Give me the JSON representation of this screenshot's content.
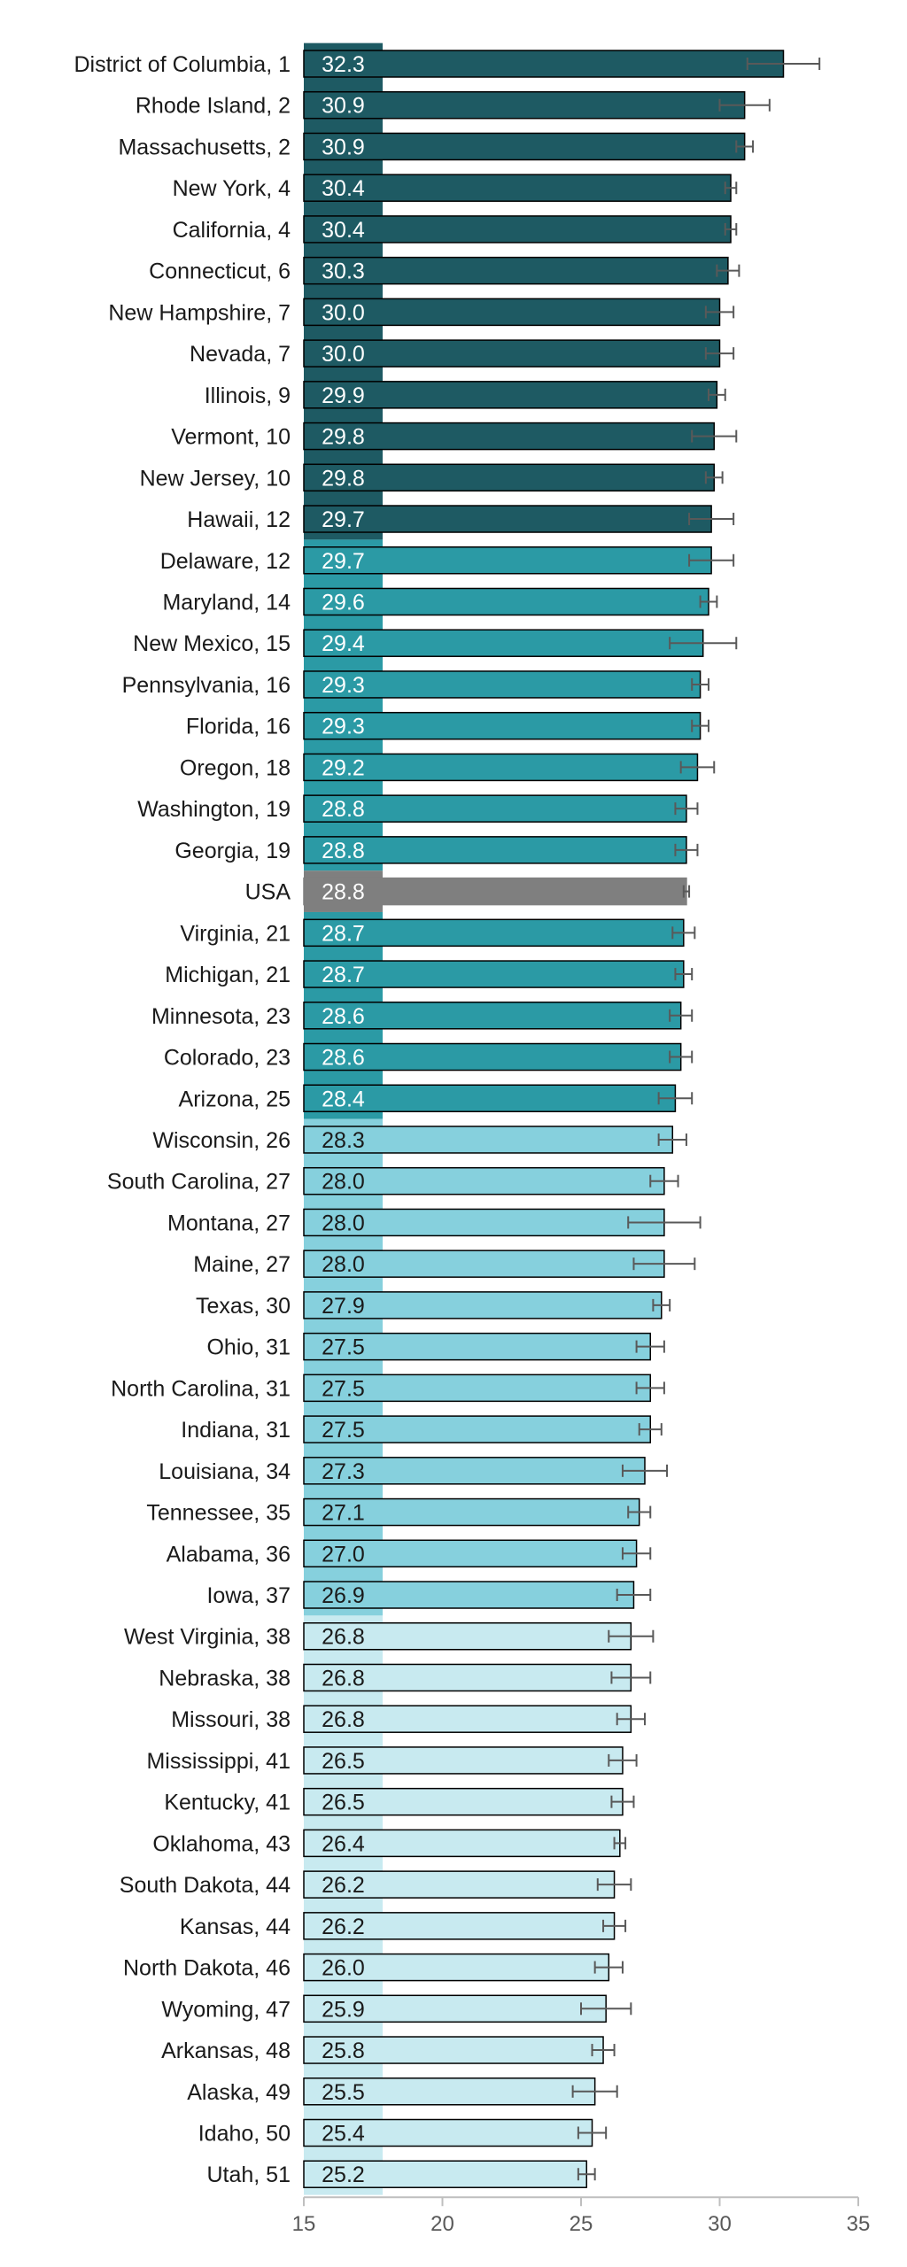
{
  "colors": {
    "tier1": "#1e5a63",
    "tier2": "#2b9aa5",
    "tier3": "#86d0dd",
    "tier4": "#c8eaf0",
    "usa": "#7f7f7f",
    "bar_outline": "#000000",
    "error_bar": "#595959",
    "axis": "#bfbfbf",
    "label_dark_text": "#ffffff",
    "label_light_text": "#1a1a1a"
  },
  "chart_data": {
    "type": "bar",
    "orientation": "horizontal",
    "title": "",
    "xlabel": "",
    "ylabel": "",
    "xlim": [
      15,
      35
    ],
    "xticks": [
      15,
      20,
      25,
      30,
      35
    ],
    "grid": false,
    "legend": "none",
    "categories": [
      "District of Columbia, 1",
      "Rhode Island, 2",
      "Massachusetts, 2",
      "New York, 4",
      "California, 4",
      "Connecticut, 6",
      "New Hampshire, 7",
      "Nevada, 7",
      "Illinois, 9",
      "Vermont, 10",
      "New Jersey, 10",
      "Hawaii, 12",
      "Delaware, 12",
      "Maryland, 14",
      "New Mexico, 15",
      "Pennsylvania, 16",
      "Florida, 16",
      "Oregon, 18",
      "Washington, 19",
      "Georgia, 19",
      "USA",
      "Virginia, 21",
      "Michigan, 21",
      "Minnesota, 23",
      "Colorado, 23",
      "Arizona, 25",
      "Wisconsin, 26",
      "South Carolina, 27",
      "Montana, 27",
      "Maine, 27",
      "Texas, 30",
      "Ohio, 31",
      "North Carolina, 31",
      "Indiana, 31",
      "Louisiana, 34",
      "Tennessee, 35",
      "Alabama, 36",
      "Iowa, 37",
      "West Virginia, 38",
      "Nebraska, 38",
      "Missouri, 38",
      "Mississippi, 41",
      "Kentucky, 41",
      "Oklahoma, 43",
      "South Dakota, 44",
      "Kansas, 44",
      "North Dakota, 46",
      "Wyoming, 47",
      "Arkansas, 48",
      "Alaska, 49",
      "Idaho, 50",
      "Utah, 51"
    ],
    "values": [
      32.3,
      30.9,
      30.9,
      30.4,
      30.4,
      30.3,
      30.0,
      30.0,
      29.9,
      29.8,
      29.8,
      29.7,
      29.7,
      29.6,
      29.4,
      29.3,
      29.3,
      29.2,
      28.8,
      28.8,
      28.8,
      28.7,
      28.7,
      28.6,
      28.6,
      28.4,
      28.3,
      28.0,
      28.0,
      28.0,
      27.9,
      27.5,
      27.5,
      27.5,
      27.3,
      27.1,
      27.0,
      26.9,
      26.8,
      26.8,
      26.8,
      26.5,
      26.5,
      26.4,
      26.2,
      26.2,
      26.0,
      25.9,
      25.8,
      25.5,
      25.4,
      25.2
    ],
    "value_labels": [
      "32.3",
      "30.9",
      "30.9",
      "30.4",
      "30.4",
      "30.3",
      "30.0",
      "30.0",
      "29.9",
      "29.8",
      "29.8",
      "29.7",
      "29.7",
      "29.6",
      "29.4",
      "29.3",
      "29.3",
      "29.2",
      "28.8",
      "28.8",
      "28.8",
      "28.7",
      "28.7",
      "28.6",
      "28.6",
      "28.4",
      "28.3",
      "28.0",
      "28.0",
      "28.0",
      "27.9",
      "27.5",
      "27.5",
      "27.5",
      "27.3",
      "27.1",
      "27.0",
      "26.9",
      "26.8",
      "26.8",
      "26.8",
      "26.5",
      "26.5",
      "26.4",
      "26.2",
      "26.2",
      "26.0",
      "25.9",
      "25.8",
      "25.5",
      "25.4",
      "25.2"
    ],
    "error_low": [
      31.0,
      30.0,
      30.6,
      30.2,
      30.2,
      29.9,
      29.5,
      29.5,
      29.6,
      29.0,
      29.5,
      28.9,
      28.9,
      29.3,
      28.2,
      29.0,
      29.0,
      28.6,
      28.4,
      28.4,
      28.7,
      28.3,
      28.4,
      28.2,
      28.2,
      27.8,
      27.8,
      27.5,
      26.7,
      26.9,
      27.6,
      27.0,
      27.0,
      27.1,
      26.5,
      26.7,
      26.5,
      26.3,
      26.0,
      26.1,
      26.3,
      26.0,
      26.1,
      26.2,
      25.6,
      25.8,
      25.5,
      25.0,
      25.4,
      24.7,
      24.9,
      24.9
    ],
    "error_high": [
      33.6,
      31.8,
      31.2,
      30.6,
      30.6,
      30.7,
      30.5,
      30.5,
      30.2,
      30.6,
      30.1,
      30.5,
      30.5,
      29.9,
      30.6,
      29.6,
      29.6,
      29.8,
      29.2,
      29.2,
      28.9,
      29.1,
      29.0,
      29.0,
      29.0,
      29.0,
      28.8,
      28.5,
      29.3,
      29.1,
      28.2,
      28.0,
      28.0,
      27.9,
      28.1,
      27.5,
      27.5,
      27.5,
      27.6,
      27.5,
      27.3,
      27.0,
      26.9,
      26.6,
      26.8,
      26.6,
      26.5,
      26.8,
      26.2,
      26.3,
      25.9,
      25.5
    ],
    "tiers": [
      1,
      1,
      1,
      1,
      1,
      1,
      1,
      1,
      1,
      1,
      1,
      1,
      2,
      2,
      2,
      2,
      2,
      2,
      2,
      2,
      0,
      2,
      2,
      2,
      2,
      2,
      3,
      3,
      3,
      3,
      3,
      3,
      3,
      3,
      3,
      3,
      3,
      3,
      4,
      4,
      4,
      4,
      4,
      4,
      4,
      4,
      4,
      4,
      4,
      4,
      4,
      4
    ]
  }
}
